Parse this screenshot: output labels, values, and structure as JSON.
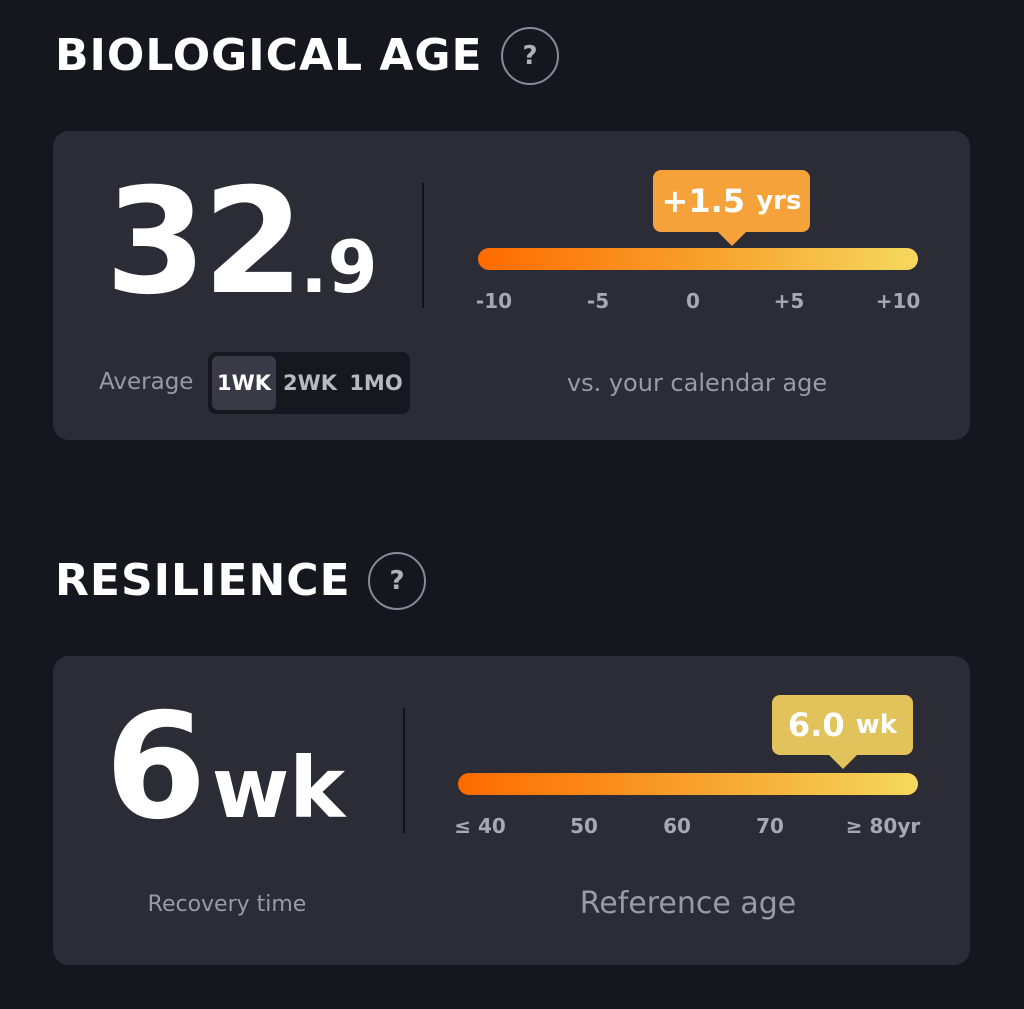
{
  "biological_age": {
    "title": "BIOLOGICAL AGE",
    "help": "?",
    "value_whole": "32",
    "value_decimal": ".9",
    "badge": {
      "value": "+1.5",
      "unit": "yrs"
    },
    "scale_labels": [
      "-10",
      "-5",
      "0",
      "+5",
      "+10"
    ],
    "average_label": "Average",
    "periods": [
      "1WK",
      "2WK",
      "1MO"
    ],
    "caption": "vs. your calendar age"
  },
  "resilience": {
    "title": "RESILIENCE",
    "help": "?",
    "value": "6",
    "unit": "wk",
    "badge": {
      "value": "6.0",
      "unit": "wk"
    },
    "scale_labels": [
      "≤ 40",
      "50",
      "60",
      "70",
      "≥ 80yr"
    ],
    "caption_left": "Recovery time",
    "caption_right": "Reference age"
  }
}
